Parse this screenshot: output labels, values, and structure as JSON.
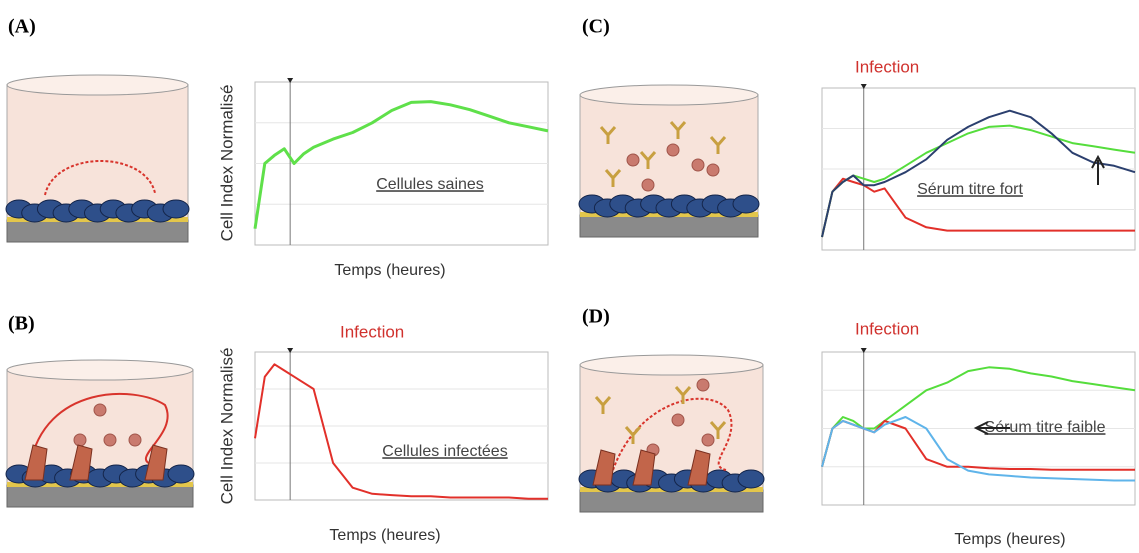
{
  "chart_data": [
    {
      "type": "line",
      "panel_label": "(A)",
      "y_label": "Cell Index Normalisé",
      "x_label": "Temps (heures)",
      "annotation": "Cellules saines",
      "x": [
        0,
        5,
        10,
        15,
        20,
        25,
        30,
        40,
        50,
        60,
        70,
        80,
        90,
        100,
        110,
        120,
        130,
        140,
        150
      ],
      "xlim": [
        0,
        150
      ],
      "ylim": [
        0,
        2
      ],
      "event_x": 18,
      "series": [
        {
          "color": "#5fe04a",
          "values": [
            0.2,
            1.0,
            1.1,
            1.18,
            1.0,
            1.12,
            1.2,
            1.3,
            1.38,
            1.5,
            1.65,
            1.75,
            1.76,
            1.72,
            1.66,
            1.58,
            1.5,
            1.45,
            1.4
          ]
        }
      ]
    },
    {
      "type": "line",
      "panel_label": "(B)",
      "title": "Infection",
      "y_label": "Cell Index Normalisé",
      "x_label": "Temps (heures)",
      "annotation": "Cellules infectées",
      "x": [
        0,
        5,
        10,
        15,
        20,
        25,
        30,
        40,
        50,
        60,
        70,
        80,
        90,
        100,
        110,
        120,
        130,
        140,
        150
      ],
      "xlim": [
        0,
        150
      ],
      "ylim": [
        0,
        1.2
      ],
      "event_x": 18,
      "series": [
        {
          "color": "#e2302a",
          "values": [
            0.5,
            1.0,
            1.1,
            1.05,
            1.0,
            0.95,
            0.9,
            0.3,
            0.1,
            0.05,
            0.04,
            0.03,
            0.03,
            0.02,
            0.02,
            0.02,
            0.02,
            0.01,
            0.01
          ]
        }
      ]
    },
    {
      "type": "line",
      "panel_label": "(C)",
      "title": "Infection",
      "annotation": "Sérum titre fort",
      "x": [
        0,
        5,
        10,
        15,
        20,
        25,
        30,
        40,
        50,
        60,
        70,
        80,
        90,
        100,
        110,
        120,
        130,
        140,
        150
      ],
      "xlim": [
        0,
        150
      ],
      "ylim": [
        0,
        2.5
      ],
      "event_x": 20,
      "series": [
        {
          "color": "#e2302a",
          "values": [
            0.2,
            0.9,
            1.1,
            1.05,
            1.0,
            0.9,
            0.95,
            0.5,
            0.35,
            0.3,
            0.3,
            0.3,
            0.3,
            0.3,
            0.3,
            0.3,
            0.3,
            0.3,
            0.3
          ]
        },
        {
          "color": "#55dd3c",
          "values": [
            0.2,
            0.9,
            1.05,
            1.15,
            1.1,
            1.05,
            1.1,
            1.3,
            1.5,
            1.65,
            1.8,
            1.9,
            1.92,
            1.85,
            1.75,
            1.65,
            1.6,
            1.55,
            1.5
          ]
        },
        {
          "color": "#2b3f6e",
          "values": [
            0.2,
            0.9,
            1.05,
            1.15,
            1.0,
            1.0,
            1.05,
            1.2,
            1.4,
            1.7,
            1.9,
            2.05,
            2.15,
            2.05,
            1.8,
            1.5,
            1.35,
            1.3,
            1.2
          ]
        }
      ]
    },
    {
      "type": "line",
      "panel_label": "(D)",
      "title": "Infection",
      "x_label": "Temps (heures)",
      "annotation": "Sérum titre faible",
      "x": [
        0,
        5,
        10,
        15,
        20,
        25,
        30,
        40,
        50,
        60,
        70,
        80,
        90,
        100,
        110,
        120,
        130,
        140,
        150
      ],
      "xlim": [
        0,
        150
      ],
      "ylim": [
        0,
        2
      ],
      "event_x": 20,
      "series": [
        {
          "color": "#55dd3c",
          "values": [
            0.5,
            1.0,
            1.15,
            1.1,
            1.0,
            1.0,
            1.1,
            1.3,
            1.5,
            1.6,
            1.75,
            1.8,
            1.78,
            1.72,
            1.68,
            1.62,
            1.58,
            1.54,
            1.5
          ]
        },
        {
          "color": "#e2302a",
          "values": [
            0.5,
            1.0,
            1.1,
            1.05,
            1.0,
            0.95,
            1.1,
            1.0,
            0.6,
            0.5,
            0.5,
            0.48,
            0.47,
            0.47,
            0.46,
            0.46,
            0.46,
            0.46,
            0.46
          ]
        },
        {
          "color": "#5fb4ea",
          "values": [
            0.5,
            1.0,
            1.1,
            1.05,
            1.0,
            0.95,
            1.05,
            1.15,
            1.0,
            0.6,
            0.45,
            0.4,
            0.38,
            0.36,
            0.35,
            0.34,
            0.33,
            0.32,
            0.32
          ]
        }
      ]
    }
  ]
}
